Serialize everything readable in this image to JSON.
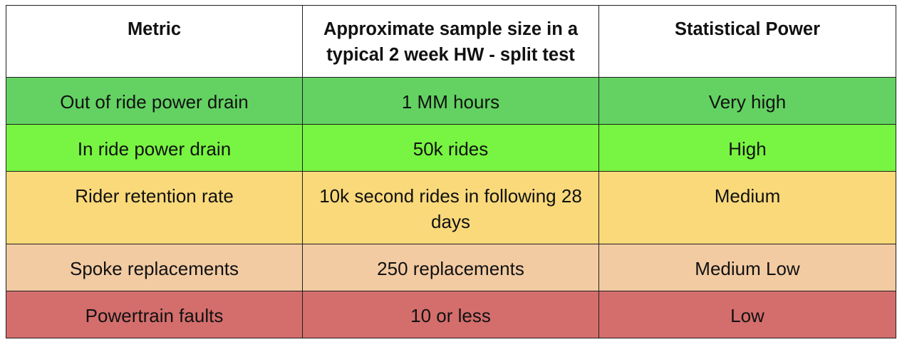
{
  "table": {
    "headers": [
      "Metric",
      "Approximate sample size in a typical 2 week HW - split test",
      "Statistical Power"
    ],
    "rows": [
      {
        "metric": "Out of ride power drain",
        "sample_size": "1 MM hours",
        "power": "Very high",
        "color": "#63d262"
      },
      {
        "metric": "In ride power drain",
        "sample_size": "50k rides",
        "power": "High",
        "color": "#78f542"
      },
      {
        "metric": "Rider retention rate",
        "sample_size": "10k second rides in following 28 days",
        "power": "Medium",
        "color": "#f9d97a"
      },
      {
        "metric": "Spoke replacements",
        "sample_size": "250 replacements",
        "power": "Medium Low",
        "color": "#f2cba3"
      },
      {
        "metric": "Powertrain faults",
        "sample_size": "10 or less",
        "power": "Low",
        "color": "#d46e6c"
      }
    ]
  }
}
